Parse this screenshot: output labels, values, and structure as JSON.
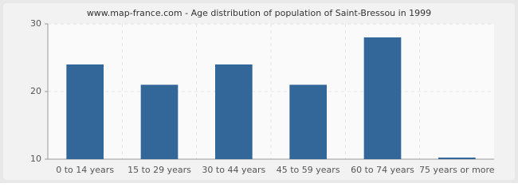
{
  "chart_data": {
    "type": "bar",
    "title": "www.map-france.com - Age distribution of population of Saint-Bressou in 1999",
    "categories": [
      "0 to 14 years",
      "15 to 29 years",
      "30 to 44 years",
      "45 to 59 years",
      "60 to 74 years",
      "75 years or more"
    ],
    "values": [
      24,
      21,
      24,
      21,
      28,
      10
    ],
    "color": "#336699",
    "ylim": [
      10,
      30
    ],
    "yticks": [
      10,
      20,
      30
    ],
    "grid": true
  }
}
